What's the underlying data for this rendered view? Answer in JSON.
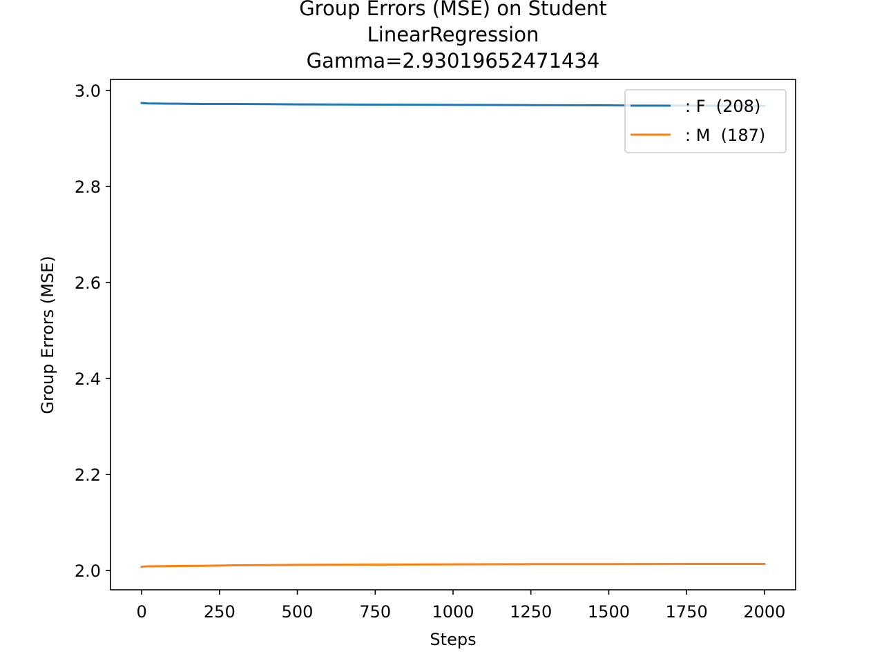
{
  "chart_data": {
    "type": "line",
    "title_lines": [
      "Group Errors (MSE) on Student",
      "LinearRegression",
      "Gamma=2.93019652471434"
    ],
    "xlabel": "Steps",
    "ylabel": "Group Errors (MSE)",
    "xlim": [
      -100,
      2100
    ],
    "ylim": [
      1.96,
      3.023
    ],
    "xticks": [
      0,
      250,
      500,
      750,
      1000,
      1250,
      1500,
      1750,
      2000
    ],
    "yticks": [
      2.0,
      2.2,
      2.4,
      2.6,
      2.8,
      3.0
    ],
    "xtick_labels": [
      "0",
      "250",
      "500",
      "750",
      "1000",
      "1250",
      "1500",
      "1750",
      "2000"
    ],
    "ytick_labels": [
      "2.0",
      "2.2",
      "2.4",
      "2.6",
      "2.8",
      "3.0"
    ],
    "grid": false,
    "legend_position": "top-right",
    "series": [
      {
        "name": ": F  (208)",
        "color": "#1f77b4",
        "x": [
          0,
          20,
          100,
          200,
          300,
          400,
          500,
          750,
          1000,
          1250,
          1500,
          1750,
          2000
        ],
        "y": [
          2.974,
          2.973,
          2.9725,
          2.972,
          2.972,
          2.9715,
          2.971,
          2.9705,
          2.97,
          2.9695,
          2.969,
          2.9685,
          2.968
        ]
      },
      {
        "name": ": M  (187)",
        "color": "#ff7f0e",
        "x": [
          0,
          20,
          100,
          200,
          300,
          400,
          500,
          750,
          1000,
          1250,
          1500,
          1750,
          2000
        ],
        "y": [
          2.008,
          2.009,
          2.0095,
          2.01,
          2.011,
          2.0115,
          2.012,
          2.0125,
          2.013,
          2.0135,
          2.0135,
          2.014,
          2.014
        ]
      }
    ]
  }
}
